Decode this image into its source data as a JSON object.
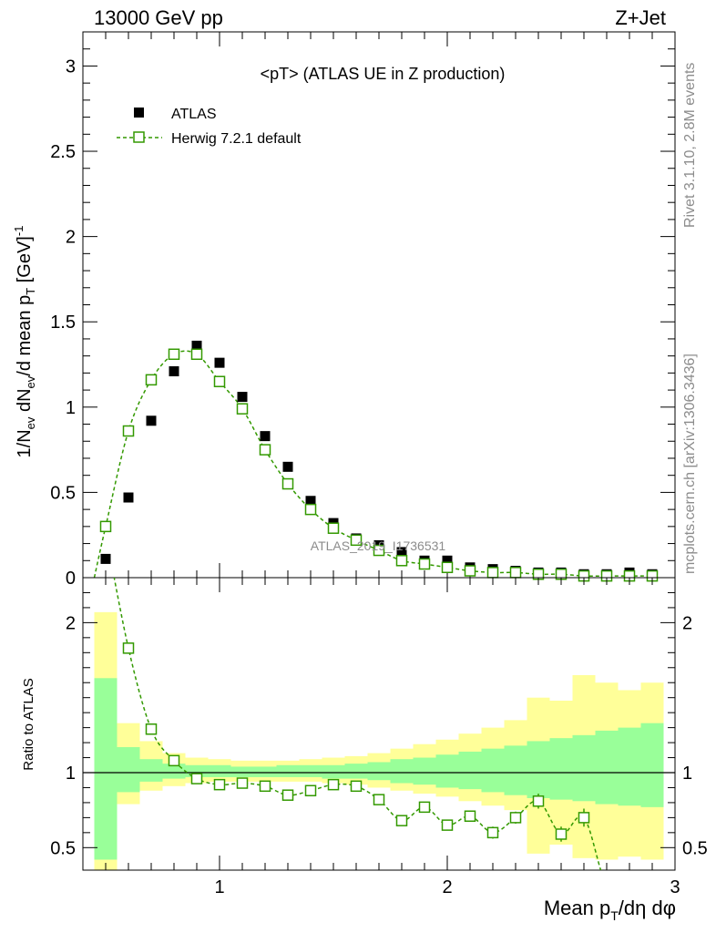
{
  "header": {
    "left": "13000 GeV pp",
    "right": "Z+Jet"
  },
  "side_text": {
    "rivet": "Rivet 3.1.10,  2.8M events",
    "mcplots": "mcplots.cern.ch [arXiv:1306.3436]"
  },
  "chart_data": [
    {
      "type": "scatter",
      "title": "<pT> (ATLAS UE in Z production)",
      "watermark": "ATLAS_2019_I1736531",
      "xlabel": "Mean pT/dη dφ",
      "ylabel": "1/Nev dNev/d mean pT [GeV]-1",
      "xlim": [
        0.4,
        3.0
      ],
      "ylim": [
        0,
        3.2
      ],
      "yticks": [
        0,
        0.5,
        1,
        1.5,
        2,
        2.5,
        3
      ],
      "ytick_labels": [
        "0",
        "0.5",
        "1",
        "1.5",
        "2",
        "2.5",
        "3"
      ],
      "legend_position": "top-left",
      "x": [
        0.5,
        0.6,
        0.7,
        0.8,
        0.9,
        1.0,
        1.1,
        1.2,
        1.3,
        1.4,
        1.5,
        1.6,
        1.7,
        1.8,
        1.9,
        2.0,
        2.1,
        2.2,
        2.3,
        2.4,
        2.5,
        2.6,
        2.7,
        2.8,
        2.9
      ],
      "series": [
        {
          "name": "ATLAS",
          "marker": "filled-square",
          "color": "#000000",
          "values": [
            0.11,
            0.47,
            0.92,
            1.21,
            1.36,
            1.26,
            1.06,
            0.83,
            0.65,
            0.45,
            0.32,
            0.23,
            0.19,
            0.15,
            0.1,
            0.1,
            0.06,
            0.05,
            0.04,
            0.03,
            0.03,
            0.02,
            0.02,
            0.03,
            0.02
          ]
        },
        {
          "name": "Herwig 7.2.1 default",
          "marker": "open-square",
          "line": "dashed",
          "color": "#339900",
          "values": [
            0.3,
            0.86,
            1.16,
            1.31,
            1.31,
            1.15,
            0.99,
            0.75,
            0.55,
            0.4,
            0.29,
            0.22,
            0.16,
            0.1,
            0.08,
            0.06,
            0.04,
            0.03,
            0.03,
            0.02,
            0.02,
            0.01,
            0.01,
            0.01,
            0.01
          ]
        }
      ]
    },
    {
      "type": "scatter",
      "ylabel": "Ratio to ATLAS",
      "xlabel": "Mean pT/dη dφ",
      "xlim": [
        0.4,
        3.0
      ],
      "ylim": [
        0.35,
        2.3
      ],
      "xticks": [
        1,
        2,
        3
      ],
      "xtick_labels": [
        "1",
        "2",
        "3"
      ],
      "yticks": [
        0.5,
        1,
        2
      ],
      "ytick_labels": [
        "0.5",
        "1",
        "2"
      ],
      "bands": {
        "x_edges": [
          0.45,
          0.55,
          0.65,
          0.75,
          0.85,
          0.95,
          1.05,
          1.15,
          1.25,
          1.35,
          1.45,
          1.55,
          1.65,
          1.75,
          1.85,
          1.95,
          2.05,
          2.15,
          2.25,
          2.35,
          2.45,
          2.55,
          2.65,
          2.75,
          2.85,
          2.95
        ],
        "green": {
          "color": "#99ff99",
          "low": [
            0.42,
            0.87,
            0.94,
            0.96,
            0.97,
            0.97,
            0.97,
            0.97,
            0.97,
            0.97,
            0.96,
            0.96,
            0.95,
            0.93,
            0.92,
            0.9,
            0.89,
            0.87,
            0.85,
            0.83,
            0.82,
            0.81,
            0.79,
            0.78,
            0.77
          ],
          "high": [
            1.63,
            1.17,
            1.09,
            1.06,
            1.05,
            1.05,
            1.04,
            1.04,
            1.05,
            1.05,
            1.05,
            1.06,
            1.07,
            1.09,
            1.1,
            1.12,
            1.14,
            1.16,
            1.18,
            1.21,
            1.23,
            1.25,
            1.28,
            1.3,
            1.33
          ]
        },
        "yellow": {
          "color": "#ffff99",
          "low": [
            0.33,
            0.79,
            0.88,
            0.91,
            0.93,
            0.94,
            0.94,
            0.94,
            0.94,
            0.94,
            0.93,
            0.92,
            0.9,
            0.88,
            0.86,
            0.84,
            0.81,
            0.78,
            0.75,
            0.46,
            0.52,
            0.43,
            0.42,
            0.44,
            0.42
          ],
          "high": [
            2.07,
            1.33,
            1.21,
            1.13,
            1.1,
            1.09,
            1.08,
            1.08,
            1.08,
            1.09,
            1.1,
            1.11,
            1.13,
            1.16,
            1.19,
            1.22,
            1.26,
            1.3,
            1.35,
            1.5,
            1.48,
            1.65,
            1.6,
            1.55,
            1.6
          ]
        }
      },
      "reference_line": 1,
      "ratio_values": [
        2.6,
        1.83,
        1.29,
        1.08,
        0.96,
        0.92,
        0.93,
        0.91,
        0.85,
        0.88,
        0.92,
        0.91,
        0.82,
        0.68,
        0.77,
        0.65,
        0.71,
        0.6,
        0.7,
        0.81,
        0.59,
        0.7,
        0.25,
        0.25,
        0.25
      ],
      "ratio_errors": [
        0,
        0.02,
        0.01,
        0.01,
        0.01,
        0.01,
        0.01,
        0.01,
        0.01,
        0.01,
        0.01,
        0.01,
        0.02,
        0.02,
        0.03,
        0.03,
        0.03,
        0.04,
        0.04,
        0.05,
        0.05,
        0.06,
        0,
        0,
        0
      ]
    }
  ]
}
